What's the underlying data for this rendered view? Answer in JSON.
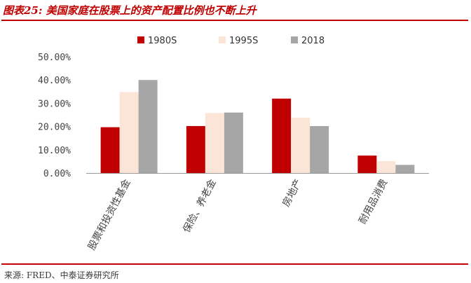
{
  "header": {
    "title": "图表25:  美国家庭在股票上的资产配置比例也不断上升"
  },
  "footer": {
    "source": "来源: FRED、中泰证券研究所"
  },
  "chart_data": {
    "type": "bar",
    "title": "",
    "xlabel": "",
    "ylabel": "",
    "categories": [
      "股票和投资性基金",
      "保险、养老金",
      "房地产",
      "耐用品消费"
    ],
    "series": [
      {
        "name": "1980S",
        "color": "#c00000",
        "values": [
          19.7,
          20.2,
          32.0,
          7.5
        ]
      },
      {
        "name": "1995S",
        "color": "#fbe5d6",
        "values": [
          34.8,
          25.8,
          23.8,
          5.1
        ]
      },
      {
        "name": "2018",
        "color": "#a6a6a6",
        "values": [
          40.0,
          26.0,
          20.2,
          3.5
        ]
      }
    ],
    "ylim": [
      0,
      50
    ],
    "yticks": [
      "0.00%",
      "10.00%",
      "20.00%",
      "30.00%",
      "40.00%",
      "50.00%"
    ],
    "grid": false,
    "legend_position": "top-center"
  }
}
